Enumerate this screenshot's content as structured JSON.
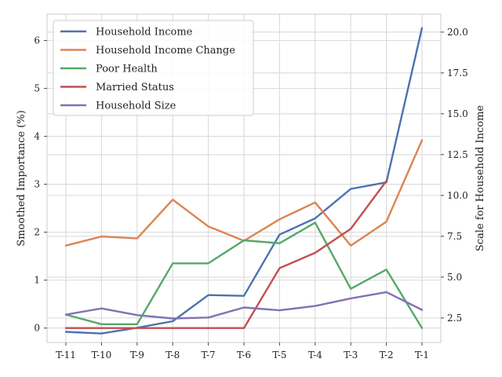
{
  "chart_data": {
    "type": "line",
    "title": "",
    "xlabel": "",
    "ylabel": "Smoothed Importance (%)",
    "ylabel_right": "Scale for Household Income",
    "categories": [
      "T-11",
      "T-10",
      "T-9",
      "T-8",
      "T-7",
      "T-6",
      "T-5",
      "T-4",
      "T-3",
      "T-2",
      "T-1"
    ],
    "ylim": [
      -0.3,
      6.55
    ],
    "yticks": [
      0,
      1,
      2,
      3,
      4,
      5,
      6
    ],
    "y2lim": [
      1.0,
      21.1
    ],
    "y2ticks": [
      "2.5",
      "5.0",
      "7.5",
      "10.0",
      "12.5",
      "15.0",
      "17.5",
      "20.0"
    ],
    "grid": true,
    "legend_position": "top-left",
    "series": [
      {
        "name": "Household Income",
        "color": "#4c72b0",
        "axis": "right",
        "values": [
          1.65,
          1.55,
          1.9,
          2.3,
          3.9,
          3.85,
          7.6,
          8.6,
          10.4,
          10.8,
          20.25
        ]
      },
      {
        "name": "Household Income Change",
        "color": "#dd8452",
        "axis": "left",
        "values": [
          1.72,
          1.91,
          1.87,
          2.68,
          2.12,
          1.82,
          2.27,
          2.62,
          1.72,
          2.22,
          3.92
        ]
      },
      {
        "name": "Poor Health",
        "color": "#55a868",
        "axis": "left",
        "values": [
          0.28,
          0.08,
          0.08,
          1.35,
          1.35,
          1.83,
          1.77,
          2.2,
          0.82,
          1.22,
          0.0
        ]
      },
      {
        "name": "Married Status",
        "color": "#c44e52",
        "axis": "left",
        "values": [
          0.0,
          0.0,
          0.0,
          0.0,
          0.0,
          0.0,
          1.25,
          1.57,
          2.07,
          3.07,
          null
        ]
      },
      {
        "name": "Household Size",
        "color": "#8172b3",
        "axis": "left",
        "values": [
          0.28,
          0.41,
          0.27,
          0.2,
          0.22,
          0.43,
          0.37,
          0.46,
          0.62,
          0.75,
          0.38
        ]
      }
    ]
  }
}
